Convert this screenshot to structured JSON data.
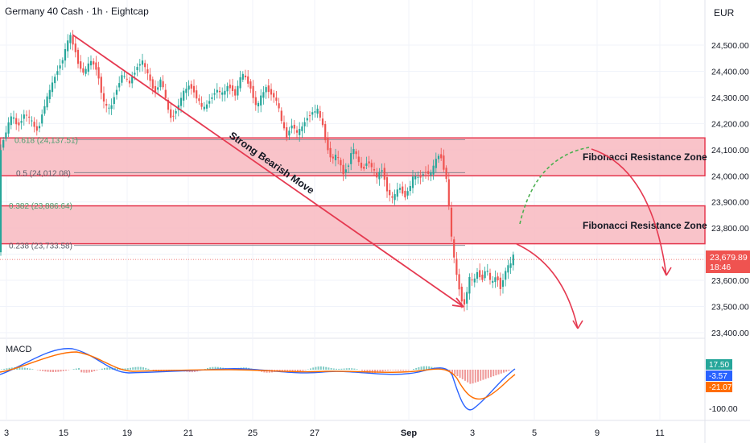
{
  "header": {
    "title": "Germany 40 Cash · 1h · Eightcap",
    "currency": "EUR"
  },
  "chart_data": {
    "type": "candlestick",
    "title": "Germany 40 Cash · 1h · Eightcap",
    "currency": "EUR",
    "x_ticks": [
      "3",
      "15",
      "19",
      "21",
      "25",
      "27",
      "Sep",
      "3",
      "5",
      "9",
      "11"
    ],
    "y_ticks": [
      "24,500.00",
      "24,400.00",
      "24,300.00",
      "24,200.00",
      "24,100.00",
      "24,000.00",
      "23,900.00",
      "23,800.00",
      "23,700.00",
      "23,600.00",
      "23,500.00",
      "23,400.00"
    ],
    "y_tick_values": [
      24500,
      24400,
      24300,
      24200,
      24100,
      24000,
      23900,
      23800,
      23700,
      23600,
      23500,
      23400
    ],
    "ylim": [
      23340,
      24640
    ],
    "price_path": [
      [
        0,
        24080
      ],
      [
        8,
        24160
      ],
      [
        16,
        24230
      ],
      [
        24,
        24190
      ],
      [
        32,
        24240
      ],
      [
        40,
        24210
      ],
      [
        48,
        24170
      ],
      [
        56,
        24260
      ],
      [
        64,
        24330
      ],
      [
        72,
        24400
      ],
      [
        80,
        24450
      ],
      [
        88,
        24540
      ],
      [
        94,
        24490
      ],
      [
        100,
        24420
      ],
      [
        106,
        24390
      ],
      [
        114,
        24440
      ],
      [
        122,
        24410
      ],
      [
        130,
        24280
      ],
      [
        138,
        24250
      ],
      [
        146,
        24330
      ],
      [
        154,
        24390
      ],
      [
        162,
        24350
      ],
      [
        170,
        24410
      ],
      [
        178,
        24440
      ],
      [
        186,
        24380
      ],
      [
        194,
        24320
      ],
      [
        202,
        24370
      ],
      [
        208,
        24280
      ],
      [
        214,
        24220
      ],
      [
        222,
        24260
      ],
      [
        230,
        24320
      ],
      [
        238,
        24350
      ],
      [
        246,
        24300
      ],
      [
        254,
        24250
      ],
      [
        262,
        24290
      ],
      [
        270,
        24330
      ],
      [
        278,
        24310
      ],
      [
        286,
        24350
      ],
      [
        294,
        24310
      ],
      [
        302,
        24390
      ],
      [
        308,
        24370
      ],
      [
        314,
        24330
      ],
      [
        320,
        24260
      ],
      [
        326,
        24300
      ],
      [
        332,
        24340
      ],
      [
        340,
        24310
      ],
      [
        346,
        24280
      ],
      [
        352,
        24200
      ],
      [
        358,
        24150
      ],
      [
        364,
        24200
      ],
      [
        370,
        24160
      ],
      [
        376,
        24180
      ],
      [
        382,
        24220
      ],
      [
        388,
        24240
      ],
      [
        396,
        24250
      ],
      [
        402,
        24200
      ],
      [
        408,
        24110
      ],
      [
        414,
        24060
      ],
      [
        420,
        24080
      ],
      [
        428,
        24010
      ],
      [
        434,
        24040
      ],
      [
        440,
        24110
      ],
      [
        446,
        24060
      ],
      [
        452,
        24020
      ],
      [
        458,
        24060
      ],
      [
        464,
        24030
      ],
      [
        470,
        23990
      ],
      [
        476,
        24030
      ],
      [
        484,
        23930
      ],
      [
        490,
        23910
      ],
      [
        498,
        23960
      ],
      [
        504,
        23920
      ],
      [
        510,
        23950
      ],
      [
        516,
        24000
      ],
      [
        522,
        23990
      ],
      [
        530,
        24020
      ],
      [
        536,
        24000
      ],
      [
        542,
        24050
      ],
      [
        548,
        24090
      ],
      [
        554,
        24020
      ],
      [
        558,
        23960
      ],
      [
        561,
        23800
      ],
      [
        565,
        23700
      ],
      [
        569,
        23620
      ],
      [
        574,
        23540
      ],
      [
        578,
        23500
      ],
      [
        582,
        23560
      ],
      [
        586,
        23620
      ],
      [
        590,
        23580
      ],
      [
        594,
        23640
      ],
      [
        600,
        23600
      ],
      [
        606,
        23650
      ],
      [
        612,
        23580
      ],
      [
        618,
        23620
      ],
      [
        624,
        23570
      ],
      [
        630,
        23640
      ],
      [
        636,
        23660
      ],
      [
        640,
        23700
      ]
    ],
    "macd_last": [
      17.5,
      -3.57,
      -21.07
    ],
    "macd_labels": [
      "17.50",
      "-3.57",
      "-21.07",
      "-100.00"
    ],
    "last_price": "23,679.89",
    "countdown": "18:46",
    "annotations": {
      "fib_0618": "0.618 (24,137.51)",
      "fib_05": "0.5 (24,012.08)",
      "fib_0382": "0.382 (23,886.64)",
      "fib_0236": "0.238 (23,733.58)",
      "zone_label_1": "Fibonacci Resistance Zone",
      "zone_label_2": "Fibonacci Resistance Zone",
      "trend_label": "Strong Bearish Move"
    },
    "zones": [
      [
        24000,
        24145
      ],
      [
        23740,
        23885
      ]
    ],
    "colors": {
      "up": "#26a69a",
      "down": "#ef5350",
      "zone_fill": "#f8b8c0",
      "zone_stroke": "#e53950",
      "arrow": "#e53950",
      "fib": "#4caf50",
      "macd_line": "#2962ff",
      "signal_line": "#ff6d00"
    }
  },
  "macd": {
    "label": "MACD"
  }
}
